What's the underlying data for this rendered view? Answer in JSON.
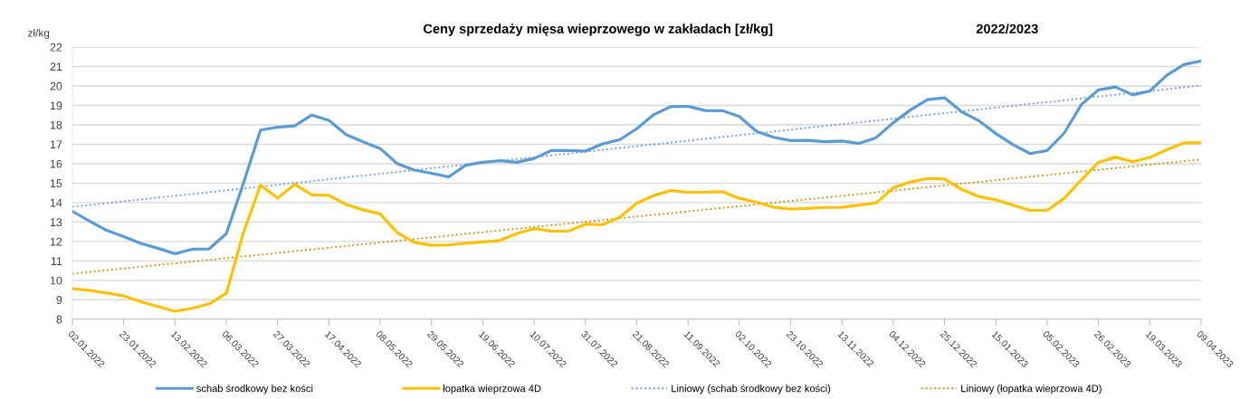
{
  "chart_data": {
    "type": "line",
    "title": "Ceny sprzedaży mięsa wieprzowego w zakładach [zł/kg]",
    "subtitle": "2022/2023",
    "ylabel": "zł/kg",
    "x": [
      "2022-01-02",
      "2022-01-09",
      "2022-01-16",
      "2022-01-23",
      "2022-01-30",
      "2022-02-06",
      "2022-02-13",
      "2022-02-20",
      "2022-02-27",
      "2022-03-06",
      "2022-03-13",
      "2022-03-20",
      "2022-03-27",
      "2022-04-03",
      "2022-04-10",
      "2022-04-17",
      "2022-04-24",
      "2022-05-01",
      "2022-05-08",
      "2022-05-15",
      "2022-05-22",
      "2022-05-29",
      "2022-06-05",
      "2022-06-12",
      "2022-06-19",
      "2022-06-26",
      "2022-07-03",
      "2022-07-10",
      "2022-07-17",
      "2022-07-24",
      "2022-07-31",
      "2022-08-07",
      "2022-08-14",
      "2022-08-21",
      "2022-08-28",
      "2022-09-04",
      "2022-09-11",
      "2022-09-18",
      "2022-09-25",
      "2022-10-02",
      "2022-10-09",
      "2022-10-16",
      "2022-10-23",
      "2022-10-30",
      "2022-11-06",
      "2022-11-13",
      "2022-11-20",
      "2022-11-27",
      "2022-12-04",
      "2022-12-11",
      "2022-12-18",
      "2022-12-25",
      "2023-01-01",
      "2023-01-08",
      "2023-01-15",
      "2023-01-22",
      "2023-01-29",
      "2023-02-05",
      "2023-02-12",
      "2023-02-19",
      "2023-02-26",
      "2023-03-05",
      "2023-03-12",
      "2023-03-19",
      "2023-03-26",
      "2023-04-02",
      "2023-04-09"
    ],
    "series": [
      {
        "name": "schab środkowy bez kości",
        "color": "#5b9bd5",
        "values": [
          13.55,
          13.05,
          12.57,
          12.25,
          11.9,
          11.65,
          11.37,
          11.6,
          11.62,
          12.4,
          15.0,
          17.73,
          17.88,
          17.95,
          18.5,
          18.23,
          17.5,
          17.13,
          16.78,
          16.0,
          15.67,
          15.51,
          15.32,
          15.92,
          16.07,
          16.15,
          16.07,
          16.27,
          16.68,
          16.68,
          16.65,
          17.02,
          17.23,
          17.8,
          18.53,
          18.94,
          18.95,
          18.74,
          18.73,
          18.43,
          17.66,
          17.36,
          17.19,
          17.2,
          17.13,
          17.17,
          17.04,
          17.34,
          18.11,
          18.76,
          19.3,
          19.39,
          18.67,
          18.21,
          17.55,
          16.98,
          16.52,
          16.68,
          17.58,
          19.04,
          19.8,
          19.95,
          19.54,
          19.74,
          20.55,
          21.1,
          21.29
        ]
      },
      {
        "name": "łopatka wieprzowa 4D",
        "color": "#ffc000",
        "values": [
          9.57,
          9.48,
          9.35,
          9.2,
          8.9,
          8.65,
          8.41,
          8.56,
          8.79,
          9.33,
          12.45,
          14.9,
          14.23,
          14.94,
          14.4,
          14.37,
          13.9,
          13.63,
          13.42,
          12.45,
          11.95,
          11.8,
          11.82,
          11.91,
          11.98,
          12.05,
          12.41,
          12.66,
          12.53,
          12.53,
          12.89,
          12.86,
          13.24,
          13.96,
          14.37,
          14.62,
          14.53,
          14.53,
          14.56,
          14.22,
          14.02,
          13.76,
          13.67,
          13.7,
          13.75,
          13.76,
          13.87,
          13.98,
          14.76,
          15.06,
          15.24,
          15.21,
          14.68,
          14.31,
          14.14,
          13.87,
          13.6,
          13.6,
          14.22,
          15.17,
          16.07,
          16.34,
          16.1,
          16.32,
          16.72,
          17.07,
          17.08
        ]
      },
      {
        "name": "Liniowy (schab środkowy bez kości)",
        "color": "#5b9bd5",
        "line_style": "dotted",
        "x": [
          "2022-01-02",
          "2023-04-09"
        ],
        "values": [
          13.78,
          20.02
        ]
      },
      {
        "name": "Liniowy (łopatka wieprzowa 4D)",
        "color": "#bf9000",
        "line_style": "dotted",
        "x": [
          "2022-01-02",
          "2023-04-09"
        ],
        "values": [
          10.34,
          16.22
        ]
      }
    ],
    "line_style": "solid",
    "marker": "none",
    "grid": "y",
    "legend": "bottom",
    "xlim": [
      "2022-01-02",
      "2023-04-09"
    ],
    "xticks": [
      {
        "value": "2022-01-02",
        "label": "02.01.2022"
      },
      {
        "value": "2022-01-23",
        "label": "23.01.2022"
      },
      {
        "value": "2022-02-13",
        "label": "13.02.2022"
      },
      {
        "value": "2022-03-06",
        "label": "06.03.2022"
      },
      {
        "value": "2022-03-27",
        "label": "27.03.2022"
      },
      {
        "value": "2022-04-17",
        "label": "17.04.2022"
      },
      {
        "value": "2022-05-08",
        "label": "08.05.2022"
      },
      {
        "value": "2022-05-29",
        "label": "29.05.2022"
      },
      {
        "value": "2022-06-19",
        "label": "19.06.2022"
      },
      {
        "value": "2022-07-10",
        "label": "10.07.2022"
      },
      {
        "value": "2022-07-31",
        "label": "31.07.2022"
      },
      {
        "value": "2022-08-21",
        "label": "21.08.2022"
      },
      {
        "value": "2022-09-11",
        "label": "11.09.2022"
      },
      {
        "value": "2022-10-02",
        "label": "02.10.2022"
      },
      {
        "value": "2022-10-23",
        "label": "23.10.2022"
      },
      {
        "value": "2022-11-13",
        "label": "13.11.2022"
      },
      {
        "value": "2022-12-04",
        "label": "04.12.2022"
      },
      {
        "value": "2022-12-25",
        "label": "25.12.2022"
      },
      {
        "value": "2023-01-15",
        "label": "15.01.2023"
      },
      {
        "value": "2023-02-05",
        "label": "05.02.2023"
      },
      {
        "value": "2023-02-26",
        "label": "26.02.2023"
      },
      {
        "value": "2023-03-19",
        "label": "19.03.2023"
      },
      {
        "value": "2023-04-09",
        "label": "09.04.2023"
      }
    ],
    "ylim": [
      8,
      22
    ],
    "yticks": [
      8,
      9,
      10,
      11,
      12,
      13,
      14,
      15,
      16,
      17,
      18,
      19,
      20,
      21,
      22
    ]
  }
}
